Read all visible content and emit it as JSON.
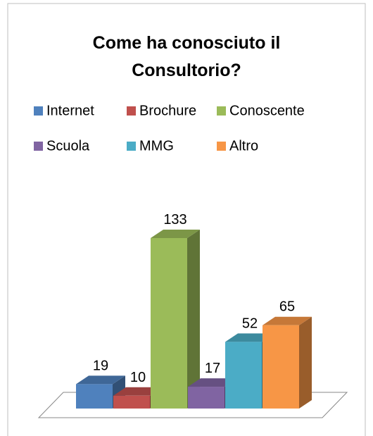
{
  "chart_data": {
    "type": "bar3d",
    "title": [
      "Come ha conosciuto il",
      "Consultorio?"
    ],
    "series": [
      {
        "name": "Internet",
        "color": "#4f81bd",
        "values": [
          19
        ]
      },
      {
        "name": "Brochure",
        "color": "#c0504d",
        "values": [
          10
        ]
      },
      {
        "name": "Conoscente",
        "color": "#9bbb59",
        "values": [
          133
        ]
      },
      {
        "name": "Scuola",
        "color": "#8064a2",
        "values": [
          17
        ]
      },
      {
        "name": "MMG",
        "color": "#4bacc6",
        "values": [
          52
        ]
      },
      {
        "name": "Altro",
        "color": "#f79646",
        "values": [
          65
        ]
      }
    ],
    "legend": "top"
  }
}
